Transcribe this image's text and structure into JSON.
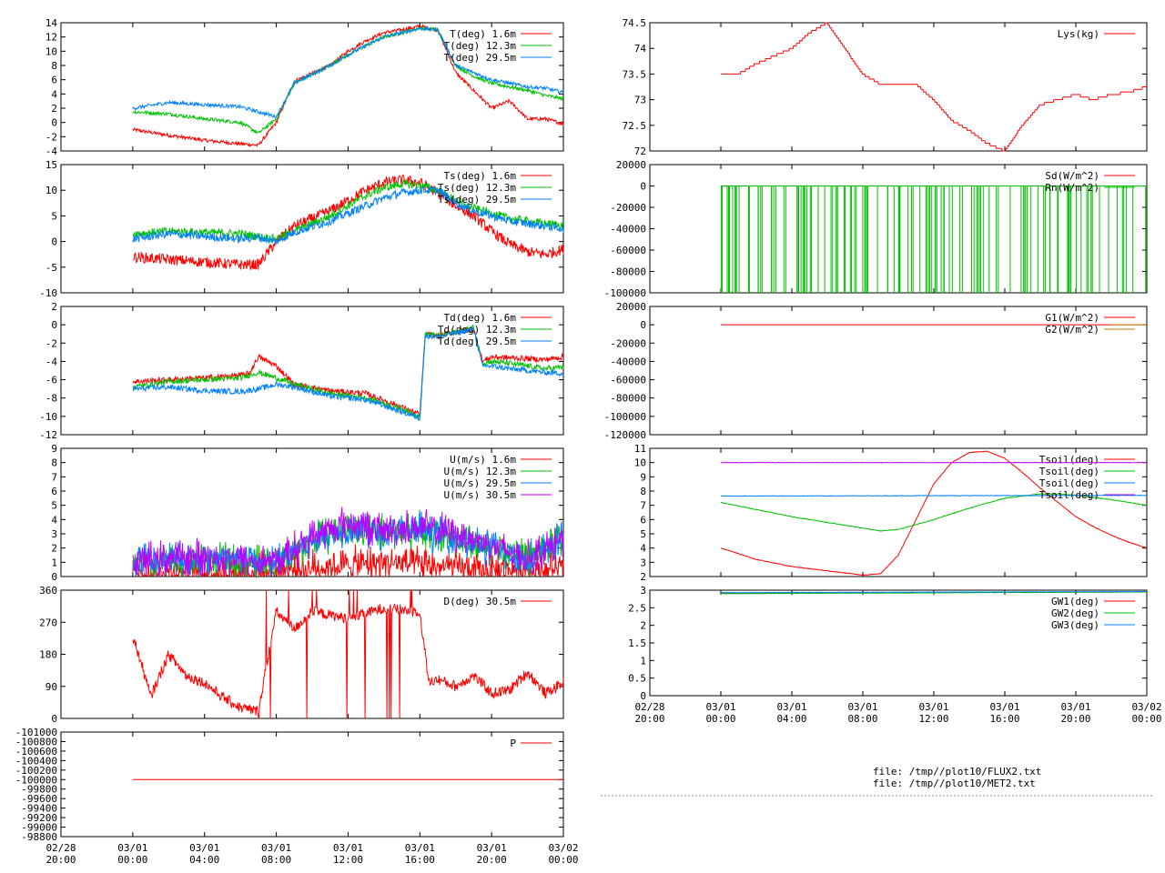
{
  "colors": {
    "red": "#ff0000",
    "green": "#00c000",
    "blue": "#0080ff",
    "purple": "#c000ff",
    "brown": "#c08000",
    "frame": "#000000",
    "bg": "#ffffff"
  },
  "time_axis": {
    "ticks": [
      "02/28\n20:00",
      "03/01\n00:00",
      "03/01\n04:00",
      "03/01\n08:00",
      "03/01\n12:00",
      "03/01\n16:00",
      "03/01\n20:00",
      "03/02\n00:00"
    ],
    "hours": [
      0,
      4,
      8,
      12,
      16,
      20,
      24,
      28
    ]
  },
  "footer": {
    "files": [
      "file: /tmp//plot10/FLUX2.txt",
      "file: /tmp//plot10/MET2.txt"
    ]
  },
  "chart_data": [
    {
      "id": "T",
      "type": "line",
      "ylim": [
        -4,
        14
      ],
      "yticks": [
        -4,
        -2,
        0,
        2,
        4,
        6,
        8,
        10,
        12,
        14
      ],
      "series": [
        {
          "name": "T(deg)  1.6m",
          "color": "#ff0000",
          "x": [
            4,
            6,
            8,
            10,
            11,
            12,
            13,
            15,
            16,
            17,
            18,
            19,
            20,
            21,
            22,
            23,
            24,
            25,
            26,
            27,
            28
          ],
          "y": [
            -1,
            -1.8,
            -2.5,
            -3,
            -3.2,
            0,
            5.8,
            8,
            10,
            11.5,
            12.6,
            13,
            13.5,
            13,
            7,
            4.5,
            2,
            3,
            0.5,
            0.5,
            -0.2
          ]
        },
        {
          "name": "T(deg) 12.3m",
          "color": "#00c000",
          "x": [
            4,
            6,
            8,
            10,
            11,
            12,
            13,
            15,
            16,
            17,
            18,
            19,
            20,
            21,
            22,
            23,
            24,
            25,
            26,
            27,
            28
          ],
          "y": [
            1.5,
            1.2,
            0.5,
            0,
            -1.5,
            0.5,
            5.5,
            8,
            9.5,
            10.8,
            12,
            12.6,
            13.3,
            13,
            8,
            6.5,
            5.5,
            5,
            4.5,
            3.8,
            3.3
          ]
        },
        {
          "name": "T(deg) 29.5m",
          "color": "#0080ff",
          "x": [
            4,
            6,
            8,
            10,
            11,
            12,
            13,
            15,
            16,
            17,
            18,
            19,
            20,
            21,
            22,
            23,
            24,
            25,
            26,
            27,
            28
          ],
          "y": [
            2,
            2.8,
            2.5,
            2.2,
            1.5,
            0.8,
            5.5,
            8,
            9.5,
            10.8,
            12,
            12.6,
            13.2,
            13,
            8,
            7,
            6,
            5.5,
            5,
            4.8,
            4.2
          ]
        }
      ]
    },
    {
      "id": "Lys",
      "type": "line",
      "ylim": [
        72,
        74.5
      ],
      "yticks": [
        72,
        72.5,
        73,
        73.5,
        74,
        74.5
      ],
      "series": [
        {
          "name": "Lys(kg)",
          "color": "#ff0000",
          "x": [
            4,
            5,
            6,
            7,
            8,
            9,
            10,
            11,
            12,
            13,
            14,
            15,
            16,
            17,
            18,
            19,
            20,
            21,
            22,
            23,
            24,
            25,
            26,
            27,
            28
          ],
          "y": [
            73.5,
            73.5,
            73.7,
            73.85,
            74,
            74.3,
            74.5,
            74,
            73.5,
            73.3,
            73.3,
            73.3,
            73,
            72.6,
            72.4,
            72.15,
            72,
            72.5,
            72.9,
            73,
            73.1,
            73,
            73.1,
            73.15,
            73.25
          ]
        }
      ]
    },
    {
      "id": "Ts",
      "type": "line",
      "ylim": [
        -10,
        15
      ],
      "yticks": [
        -10,
        -5,
        0,
        5,
        10,
        15
      ],
      "series": [
        {
          "name": "Ts(deg)  1.6m",
          "color": "#ff0000",
          "x": [
            4,
            6,
            8,
            10,
            11,
            12,
            13,
            15,
            16,
            17,
            18,
            19,
            20,
            21,
            22,
            23,
            24,
            25,
            26,
            27,
            28
          ],
          "y": [
            -3,
            -3.5,
            -4,
            -4.5,
            -4.5,
            0,
            3,
            6,
            8,
            10,
            11.5,
            12,
            11.5,
            9.5,
            7,
            5,
            2,
            -0.5,
            -2,
            -2.5,
            -1.5
          ]
        },
        {
          "name": "Ts(deg) 12.3m",
          "color": "#00c000",
          "x": [
            4,
            6,
            8,
            10,
            11,
            12,
            13,
            15,
            16,
            17,
            18,
            19,
            20,
            21,
            22,
            23,
            24,
            25,
            26,
            27,
            28
          ],
          "y": [
            1.5,
            2,
            1.8,
            1.5,
            1,
            0.5,
            2,
            5,
            7,
            9,
            10.5,
            11.2,
            11,
            10,
            8,
            6.5,
            5.5,
            4.5,
            4,
            3.5,
            3.2
          ]
        },
        {
          "name": "Ts(deg) 29.5m",
          "color": "#0080ff",
          "x": [
            4,
            6,
            8,
            10,
            11,
            12,
            13,
            15,
            16,
            17,
            18,
            19,
            20,
            21,
            22,
            23,
            24,
            25,
            26,
            27,
            28
          ],
          "y": [
            0.5,
            1.5,
            1,
            0.5,
            0.8,
            0,
            1.8,
            4,
            5.5,
            7,
            8.5,
            9.5,
            10,
            10,
            7.5,
            6,
            5,
            4,
            3.5,
            3,
            2.5
          ]
        }
      ]
    },
    {
      "id": "Rad",
      "type": "line",
      "ylim": [
        -100000,
        20000
      ],
      "yticks": [
        -100000,
        -80000,
        -60000,
        -40000,
        -20000,
        0,
        20000
      ],
      "series": [
        {
          "name": "Sd(W/m^2)",
          "color": "#ff0000",
          "x": [
            4,
            28
          ],
          "y": [
            0,
            0
          ]
        },
        {
          "name": "Rn(W/m^2)",
          "color": "#00c000",
          "x": [
            4,
            28
          ],
          "y": [
            0,
            0
          ],
          "spikes_to": -100000
        }
      ]
    },
    {
      "id": "Td",
      "type": "line",
      "ylim": [
        -12,
        2
      ],
      "yticks": [
        -12,
        -10,
        -8,
        -6,
        -4,
        -2,
        0,
        2
      ],
      "series": [
        {
          "name": "Td(deg)  1.6m",
          "color": "#ff0000",
          "x": [
            4,
            6,
            8,
            10,
            10.5,
            11,
            12,
            13,
            15,
            17,
            19,
            20,
            20.3,
            21,
            22,
            23,
            23.5,
            24,
            25,
            26,
            27,
            28
          ],
          "y": [
            -6.2,
            -6,
            -5.8,
            -5.5,
            -5.3,
            -3.5,
            -4.5,
            -6.5,
            -7.2,
            -7.5,
            -9,
            -9.8,
            -1,
            -1.2,
            -0.8,
            -0.5,
            -4,
            -3.5,
            -3.6,
            -3.7,
            -3.8,
            -3.5
          ]
        },
        {
          "name": "Td(deg) 12.3m",
          "color": "#00c000",
          "x": [
            4,
            6,
            8,
            10,
            11,
            12,
            13,
            15,
            17,
            19,
            20,
            20.3,
            21,
            22,
            23,
            23.5,
            24,
            25,
            26,
            27,
            28
          ],
          "y": [
            -6.8,
            -6.2,
            -6,
            -5.8,
            -5.2,
            -5.8,
            -6.5,
            -7.5,
            -8,
            -9.2,
            -10,
            -1,
            -1.2,
            -0.8,
            -0.3,
            -4.2,
            -4,
            -4.2,
            -4.5,
            -4.8,
            -4.6
          ]
        },
        {
          "name": "Td(deg) 29.5m",
          "color": "#0080ff",
          "x": [
            4,
            6,
            8,
            10,
            11,
            12,
            13,
            15,
            17,
            19,
            20,
            20.3,
            21,
            22,
            23,
            23.5,
            24,
            25,
            26,
            27,
            28
          ],
          "y": [
            -7,
            -6.8,
            -7.2,
            -7.3,
            -7,
            -6.5,
            -6.8,
            -7.8,
            -8.2,
            -9.5,
            -10.2,
            -1.2,
            -1.3,
            -0.9,
            -0.5,
            -4.5,
            -4.5,
            -4.8,
            -5,
            -5.2,
            -5.3
          ]
        }
      ]
    },
    {
      "id": "G",
      "type": "line",
      "ylim": [
        -120000,
        20000
      ],
      "yticks": [
        -120000,
        -100000,
        -80000,
        -60000,
        -40000,
        -20000,
        0,
        20000
      ],
      "series": [
        {
          "name": "G1(W/m^2)",
          "color": "#ff0000",
          "x": [
            4,
            28
          ],
          "y": [
            0,
            0
          ]
        },
        {
          "name": "G2(W/m^2)",
          "color": "#c08000",
          "x": [
            26,
            28
          ],
          "y": [
            0,
            0
          ]
        }
      ]
    },
    {
      "id": "U",
      "type": "line",
      "ylim": [
        0,
        9
      ],
      "yticks": [
        0,
        1,
        2,
        3,
        4,
        5,
        6,
        7,
        8,
        9
      ],
      "series": [
        {
          "name": "U(m/s)  1.6m",
          "color": "#ff0000",
          "x": [
            4,
            8,
            12,
            14,
            16,
            18,
            20,
            22,
            24,
            26,
            28
          ],
          "y": [
            0.3,
            0.3,
            0.4,
            0.6,
            0.8,
            1,
            0.8,
            0.6,
            0.4,
            0.5,
            0.5
          ]
        },
        {
          "name": "U(m/s) 12.3m",
          "color": "#00c000",
          "x": [
            4,
            6,
            8,
            10,
            12,
            14,
            16,
            18,
            20,
            22,
            24,
            26,
            28
          ],
          "y": [
            0.8,
            1,
            1.2,
            1,
            0.9,
            2.5,
            3.5,
            3,
            3.3,
            2.8,
            2,
            1.2,
            2.8
          ]
        },
        {
          "name": "U(m/s) 29.5m",
          "color": "#0080ff",
          "x": [
            4,
            6,
            8,
            10,
            12,
            14,
            16,
            18,
            20,
            22,
            24,
            26,
            28
          ],
          "y": [
            1,
            1.2,
            1.3,
            1.1,
            1,
            2.5,
            3.5,
            3,
            3.3,
            2.8,
            2,
            1.2,
            2.6
          ]
        },
        {
          "name": "U(m/s) 30.5m",
          "color": "#c000ff",
          "x": [
            4,
            6,
            8,
            10,
            12,
            14,
            16,
            18,
            20,
            22,
            24,
            26,
            28
          ],
          "y": [
            1,
            1.3,
            1.4,
            1.2,
            1,
            2.8,
            3.8,
            3.2,
            3.5,
            3,
            2.2,
            1.3,
            2.6
          ]
        }
      ]
    },
    {
      "id": "Tsoil",
      "type": "line",
      "ylim": [
        2,
        11
      ],
      "yticks": [
        2,
        3,
        4,
        5,
        6,
        7,
        8,
        9,
        10,
        11
      ],
      "series": [
        {
          "name": "Tsoil(deg)",
          "color": "#ff0000",
          "x": [
            4,
            6,
            8,
            10,
            12,
            13,
            14,
            15,
            16,
            17,
            18,
            19,
            20,
            21,
            22,
            23,
            24,
            25,
            26,
            27,
            28
          ],
          "y": [
            4,
            3.2,
            2.7,
            2.4,
            2.1,
            2.2,
            3.5,
            6,
            8.5,
            10,
            10.7,
            10.8,
            10.3,
            9.3,
            8.2,
            7.2,
            6.2,
            5.5,
            4.9,
            4.4,
            4
          ]
        },
        {
          "name": "Tsoil(deg)",
          "color": "#00c000",
          "x": [
            4,
            6,
            8,
            10,
            12,
            13,
            14,
            16,
            18,
            20,
            22,
            23,
            24,
            26,
            28
          ],
          "y": [
            7.2,
            6.7,
            6.2,
            5.8,
            5.4,
            5.2,
            5.3,
            6,
            6.8,
            7.5,
            7.8,
            7.8,
            7.7,
            7.4,
            7
          ]
        },
        {
          "name": "Tsoil(deg)",
          "color": "#0080ff",
          "x": [
            4,
            28
          ],
          "y": [
            7.65,
            7.7
          ]
        },
        {
          "name": "Tsoil(deg)",
          "color": "#c000ff",
          "x": [
            4,
            28
          ],
          "y": [
            10,
            10
          ]
        }
      ]
    },
    {
      "id": "D",
      "type": "line",
      "ylim": [
        0,
        360
      ],
      "yticks": [
        0,
        90,
        180,
        270,
        360
      ],
      "series": [
        {
          "name": "D(deg)  30.5m",
          "color": "#ff0000",
          "x": [
            4,
            4.5,
            5,
            6,
            7,
            8,
            9,
            10,
            11,
            12,
            13,
            14,
            16,
            18,
            20,
            20.5,
            21,
            22,
            23,
            24,
            25,
            26,
            27,
            28
          ],
          "y": [
            230,
            150,
            60,
            180,
            120,
            100,
            60,
            30,
            20,
            300,
            250,
            300,
            280,
            310,
            300,
            100,
            110,
            90,
            120,
            70,
            80,
            130,
            70,
            100
          ]
        }
      ]
    },
    {
      "id": "GW",
      "type": "line",
      "ylim": [
        0,
        3
      ],
      "yticks": [
        0,
        0.5,
        1,
        1.5,
        2,
        2.5,
        3
      ],
      "series": [
        {
          "name": "GW1(deg)",
          "color": "#ff0000",
          "x": [
            4,
            28
          ],
          "y": [
            2.92,
            2.95
          ]
        },
        {
          "name": "GW2(deg)",
          "color": "#00c000",
          "x": [
            4,
            28
          ],
          "y": [
            2.9,
            2.95
          ]
        },
        {
          "name": "GW3(deg)",
          "color": "#0080ff",
          "x": [
            4,
            28
          ],
          "y": [
            2.93,
            2.96
          ]
        }
      ]
    },
    {
      "id": "P",
      "type": "line",
      "ylim": [
        -101000,
        -98800
      ],
      "ylim_reversed": true,
      "yticks": [
        -101000,
        -100800,
        -100600,
        -100400,
        -100200,
        -100000,
        -99800,
        -99600,
        -99400,
        -99200,
        -99000,
        -98800
      ],
      "series": [
        {
          "name": "P",
          "color": "#ff0000",
          "x": [
            4,
            28
          ],
          "y": [
            -100000,
            -100000
          ]
        }
      ]
    }
  ]
}
